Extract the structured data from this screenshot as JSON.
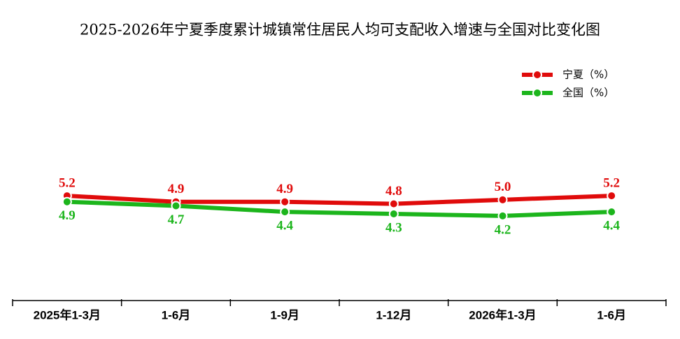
{
  "chart_data": {
    "type": "line",
    "title": "2025-2026年宁夏季度累计城镇常住居民人均可支配收入增速与全国对比变化图",
    "categories": [
      "2025年1-3月",
      "1-6月",
      "1-9月",
      "1-12月",
      "2026年1-3月",
      "1-6月"
    ],
    "series": [
      {
        "name": "宁夏（%）",
        "color": "#e00b0b",
        "values": [
          5.2,
          4.9,
          4.9,
          4.8,
          5.0,
          5.2
        ],
        "value_labels": [
          "5.2",
          "4.9",
          "4.9",
          "4.8",
          "5.0",
          "5.2"
        ]
      },
      {
        "name": "全国（%）",
        "color": "#1cb51c",
        "values": [
          4.9,
          4.7,
          4.4,
          4.3,
          4.2,
          4.4
        ],
        "value_labels": [
          "4.9",
          "4.7",
          "4.4",
          "4.3",
          "4.2",
          "4.4"
        ]
      }
    ],
    "ylim": [
      0,
      12
    ],
    "legend": "upper right"
  }
}
